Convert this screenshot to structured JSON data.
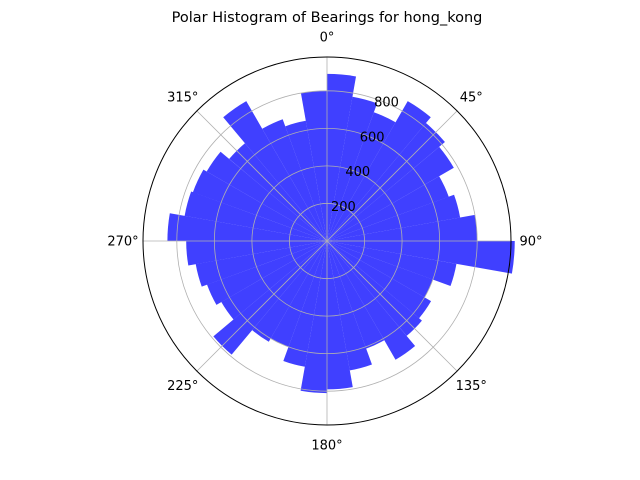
{
  "chart_data": {
    "type": "bar",
    "projection": "polar",
    "title": "Polar Histogram of Bearings for hong_kong",
    "theta_zero_location": "N",
    "theta_direction": "clockwise",
    "bin_width_deg": 10,
    "theta_ticks": [
      "0°",
      "45°",
      "90°",
      "135°",
      "180°",
      "225°",
      "270°",
      "315°"
    ],
    "r_ticks": [
      "200",
      "400",
      "600",
      "800"
    ],
    "r_tick_values": [
      200,
      400,
      600,
      800
    ],
    "r_max": 980,
    "grid": true,
    "bar_color": "#0000ff",
    "bar_alpha": 0.75,
    "categories": [
      "0°",
      "10°",
      "20°",
      "30°",
      "40°",
      "50°",
      "60°",
      "70°",
      "80°",
      "90°",
      "100°",
      "110°",
      "120°",
      "130°",
      "140°",
      "150°",
      "160°",
      "170°",
      "180°",
      "190°",
      "200°",
      "210°",
      "220°",
      "230°",
      "240°",
      "250°",
      "260°",
      "270°",
      "280°",
      "290°",
      "300°",
      "310°",
      "320°",
      "330°",
      "340°",
      "350°"
    ],
    "values": [
      890,
      780,
      730,
      860,
      820,
      780,
      690,
      720,
      800,
      1000,
      700,
      600,
      640,
      660,
      730,
      610,
      700,
      790,
      810,
      680,
      600,
      620,
      790,
      650,
      680,
      710,
      750,
      850,
      770,
      760,
      740,
      680,
      860,
      690,
      650,
      800
    ]
  }
}
